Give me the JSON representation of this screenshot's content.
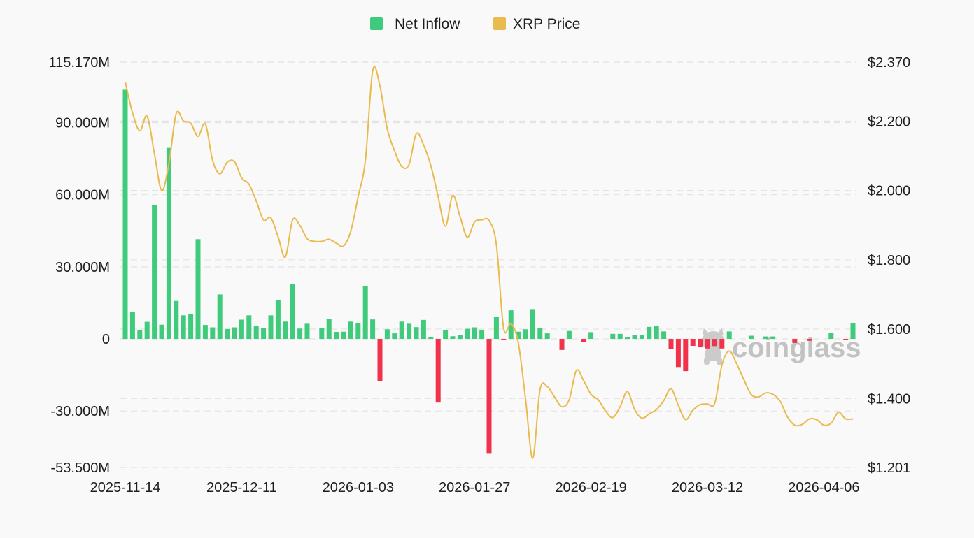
{
  "chart_data": {
    "type": "bar+line",
    "title": "",
    "legend": {
      "placement": "top-center",
      "items": [
        {
          "name": "Net Inflow",
          "color": "#3fcb7b"
        },
        {
          "name": "XRP Price",
          "color": "#e9bb4f"
        }
      ]
    },
    "x_tick_labels": [
      "2025-11-14",
      "2025-12-11",
      "2026-01-03",
      "2026-01-27",
      "2026-02-19",
      "2026-03-12",
      "2026-04-06"
    ],
    "y_left": {
      "ylim": [
        -53.5,
        115.17
      ],
      "unit": "M",
      "tick_values": [
        115.17,
        90,
        60,
        30,
        0,
        -30,
        -53.5
      ],
      "tick_labels": [
        "115.170M",
        "90.000M",
        "60.000M",
        "30.000M",
        "0",
        "-30.000M",
        "-53.500M"
      ]
    },
    "y_right": {
      "ylim": [
        1.201,
        2.37
      ],
      "tick_values": [
        2.37,
        2.2,
        2.0,
        1.8,
        1.6,
        1.4,
        1.201
      ],
      "tick_labels": [
        "$2.370",
        "$2.200",
        "$2.000",
        "$1.800",
        "$1.600",
        "$1.400",
        "$1.201"
      ]
    },
    "grid": true,
    "colors": {
      "positive": "#3fcb7b",
      "negative": "#f0334a",
      "price": "#e9bb4f"
    },
    "series": [
      {
        "name": "Net Inflow",
        "type": "bar",
        "axis": "left",
        "values": [
          103.7,
          11.3,
          3.8,
          7.1,
          55.6,
          5.9,
          79.5,
          15.8,
          9.8,
          10.2,
          41.5,
          5.8,
          4.8,
          18.5,
          4.1,
          4.8,
          8.0,
          9.8,
          5.5,
          4.4,
          9.8,
          16.2,
          7.2,
          22.7,
          4.3,
          6.3,
          0,
          4.5,
          8.3,
          2.9,
          3.0,
          7.2,
          6.7,
          21.9,
          8.1,
          -17.6,
          4.0,
          2.3,
          7.2,
          6.3,
          4.9,
          7.9,
          0.6,
          -26.5,
          3.8,
          1.1,
          1.7,
          4.2,
          4.8,
          3.7,
          -47.8,
          9.2,
          -0.3,
          11.9,
          3.0,
          4.0,
          12.4,
          4.4,
          2.3,
          0,
          -4.6,
          3.3,
          0,
          -1.3,
          2.8,
          0,
          0,
          2.1,
          2.1,
          0.8,
          1.5,
          1.6,
          5.0,
          5.4,
          3.1,
          -4.2,
          -11.7,
          -13.4,
          -2.9,
          -3.5,
          -4.0,
          -3.0,
          -4.0,
          3.1,
          0,
          0,
          1.3,
          0,
          1.0,
          1.0,
          0,
          0,
          -1.7,
          0,
          -0.8,
          0,
          0,
          2.5,
          0,
          -0.4,
          6.7
        ]
      },
      {
        "name": "XRP Price",
        "type": "line",
        "axis": "right",
        "values": [
          2.313,
          2.224,
          2.172,
          2.214,
          2.107,
          2.0,
          2.077,
          2.222,
          2.2,
          2.194,
          2.156,
          2.192,
          2.087,
          2.048,
          2.081,
          2.083,
          2.036,
          2.018,
          1.97,
          1.915,
          1.921,
          1.867,
          1.808,
          1.915,
          1.899,
          1.861,
          1.853,
          1.853,
          1.859,
          1.848,
          1.84,
          1.883,
          1.982,
          2.087,
          2.345,
          2.301,
          2.178,
          2.115,
          2.069,
          2.075,
          2.164,
          2.131,
          2.071,
          1.982,
          1.897,
          1.986,
          1.925,
          1.865,
          1.909,
          1.915,
          1.913,
          1.844,
          1.602,
          1.616,
          1.562,
          1.4,
          1.228,
          1.426,
          1.434,
          1.404,
          1.376,
          1.396,
          1.481,
          1.451,
          1.412,
          1.396,
          1.364,
          1.345,
          1.376,
          1.42,
          1.368,
          1.343,
          1.356,
          1.368,
          1.394,
          1.428,
          1.38,
          1.339,
          1.366,
          1.382,
          1.384,
          1.386,
          1.497,
          1.537,
          1.501,
          1.455,
          1.412,
          1.404,
          1.416,
          1.412,
          1.392,
          1.347,
          1.323,
          1.325,
          1.341,
          1.339,
          1.323,
          1.329,
          1.36,
          1.341,
          1.341
        ]
      }
    ],
    "watermark": "coinglass"
  }
}
